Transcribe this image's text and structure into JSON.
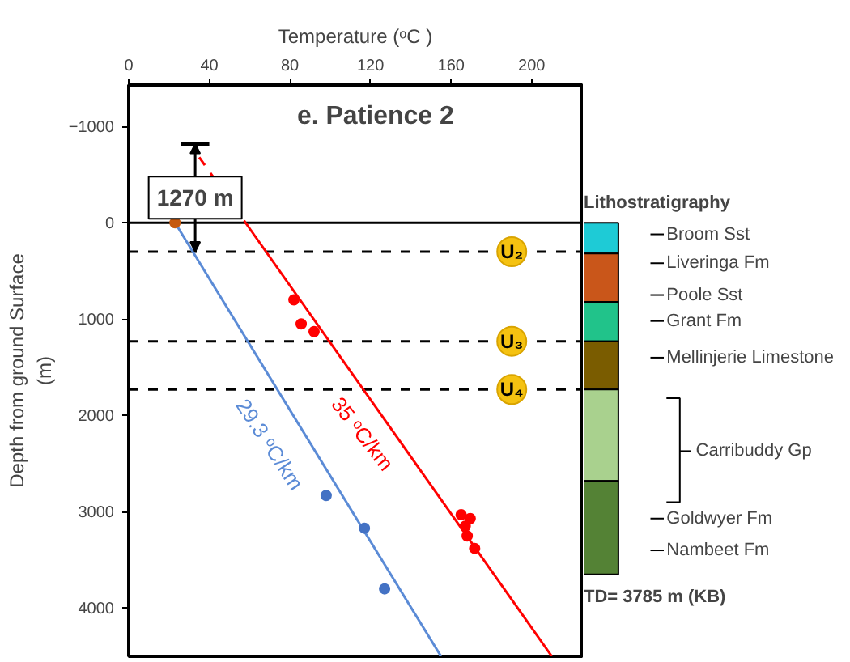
{
  "chart_data": [
    {
      "type": "scatter",
      "title": "e. Patience 2",
      "xlabel": "Temperature (ᵒC )",
      "ylabel": "Depth from ground Surface\n(m)",
      "xlim": [
        0,
        225
      ],
      "ylim": [
        4500,
        -1430
      ],
      "xticks": [
        0,
        40,
        80,
        120,
        160,
        200
      ],
      "yticks": [
        -1000,
        0,
        1000,
        2000,
        3000,
        4000
      ],
      "grid": false,
      "series": [
        {
          "type": "line",
          "color": "#5b8bd6",
          "x": [
            23,
            155
          ],
          "values": [
            0,
            4500
          ]
        },
        {
          "type": "line",
          "color": "#ff0000",
          "line_style": "dashed",
          "x": [
            35,
            58
          ],
          "values": [
            -680,
            0
          ]
        },
        {
          "type": "line",
          "color": "#ff0000",
          "x": [
            58,
            210
          ],
          "values": [
            0,
            4500
          ]
        },
        {
          "type": "scatter",
          "marker": "circle",
          "color": "#ff0000",
          "x": [
            82,
            85.6,
            92,
            165,
            169.5,
            167,
            168,
            171.7
          ],
          "values": [
            800,
            1050,
            1130,
            3030,
            3070,
            3150,
            3250,
            3380
          ]
        },
        {
          "type": "scatter",
          "marker": "circle",
          "color": "#4472c4",
          "x": [
            98,
            117,
            127
          ],
          "values": [
            2830,
            3170,
            3800
          ]
        },
        {
          "type": "scatter",
          "marker": "circle",
          "color": "#c55a11",
          "x": [
            23
          ],
          "values": [
            0
          ]
        },
        {
          "type": "line",
          "color": "#000000",
          "x": [
            26,
            40
          ],
          "values": [
            -820,
            -820
          ]
        }
      ],
      "ref_lines": [
        {
          "axis": "y",
          "value": 0,
          "color": "#000000",
          "line_style": "solid"
        },
        {
          "axis": "y",
          "value": 300,
          "label": "U₂",
          "color": "#000000",
          "line_style": "dashed"
        },
        {
          "axis": "y",
          "value": 1230,
          "label": "U₃",
          "color": "#000000",
          "line_style": "dashed"
        },
        {
          "axis": "y",
          "value": 1730,
          "label": "U₄",
          "color": "#000000",
          "line_style": "dashed"
        }
      ],
      "annotations": [
        {
          "text": "1270 m",
          "x": 33,
          "y": 300
        },
        "29.3 ᵒC/km",
        "35 ᵒC/km"
      ]
    },
    {
      "type": "bar",
      "stacked": true,
      "title": "Lithostratigraphy",
      "categories": [
        null
      ],
      "ylim": [
        4500,
        -1430
      ],
      "tick_labels": false,
      "series": [
        {
          "color": "#1ecbd6",
          "values": [
            320
          ]
        },
        {
          "color": "#c9561a",
          "values": [
            500
          ]
        },
        {
          "color": "#21c38a",
          "values": [
            410
          ]
        },
        {
          "color": "#7a5c00",
          "values": [
            500
          ]
        },
        {
          "color": "#a9d18e",
          "values": [
            950
          ]
        },
        {
          "color": "#548235",
          "values": [
            970
          ]
        }
      ],
      "annotations": [
        "Broom Sst",
        "Liveringa Fm",
        "Poole Sst",
        "Grant Fm",
        "Mellinjerie Limestone",
        "Carribuddy Gp",
        "Goldwyer Fm",
        "Nambeet Fm",
        "TD= 3785 m (KB)"
      ]
    }
  ]
}
